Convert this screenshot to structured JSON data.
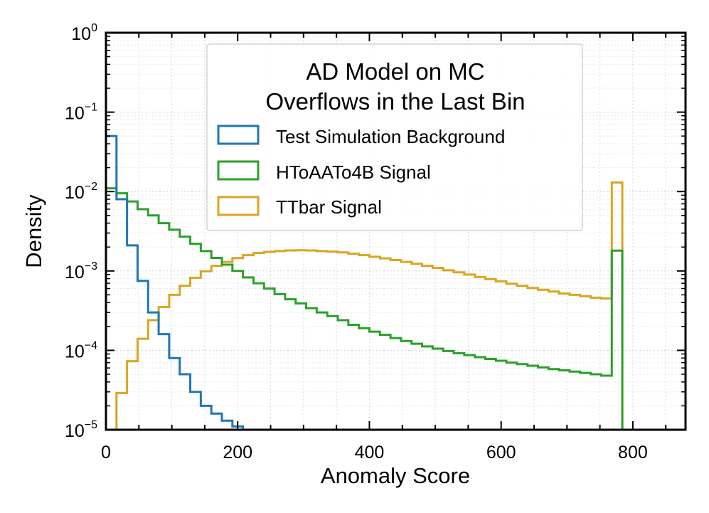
{
  "chart_data": {
    "type": "histogram",
    "title": "",
    "xlabel": "Anomaly Score",
    "ylabel": "Density",
    "xlim": [
      0,
      880
    ],
    "ylim": [
      1e-05,
      1
    ],
    "yscale": "log",
    "grid": true,
    "x_ticks": [
      {
        "value": 0,
        "label": "0"
      },
      {
        "value": 200,
        "label": "200"
      },
      {
        "value": 400,
        "label": "400"
      },
      {
        "value": 600,
        "label": "600"
      },
      {
        "value": 800,
        "label": "800"
      }
    ],
    "y_ticks": [
      {
        "value": 1,
        "base": "10",
        "exp": "0"
      },
      {
        "value": 0.1,
        "base": "10",
        "exp": "−1"
      },
      {
        "value": 0.01,
        "base": "10",
        "exp": "−2"
      },
      {
        "value": 0.001,
        "base": "10",
        "exp": "−3"
      },
      {
        "value": 0.0001,
        "base": "10",
        "exp": "−4"
      },
      {
        "value": 1e-05,
        "base": "10",
        "exp": "−5"
      }
    ],
    "legend": {
      "location": "top-center",
      "title_lines": [
        "AD Model on MC",
        "Overflows in the Last Bin"
      ]
    },
    "bin_edges": [
      0,
      16,
      32,
      48,
      64,
      80,
      96,
      112,
      128,
      144,
      160,
      176,
      192,
      208,
      224,
      240,
      256,
      272,
      288,
      304,
      320,
      336,
      352,
      368,
      384,
      400,
      416,
      432,
      448,
      464,
      480,
      496,
      512,
      528,
      544,
      560,
      576,
      592,
      608,
      624,
      640,
      656,
      672,
      688,
      704,
      720,
      736,
      752,
      768,
      784
    ],
    "series": [
      {
        "name": "Test Simulation Background",
        "color": "#1f77b4",
        "values": [
          0.05,
          0.008,
          0.0021,
          0.00075,
          0.0003,
          0.00016,
          8e-05,
          5e-05,
          3e-05,
          2e-05,
          1.6e-05,
          1.3e-05,
          1.1e-05,
          1e-05,
          1e-05,
          1e-05,
          1e-05,
          1e-05,
          1e-05,
          1e-05,
          1e-05,
          1e-05,
          1e-05,
          1e-05,
          1e-05,
          1e-05,
          1e-05,
          1e-05,
          1e-05,
          1e-05,
          1e-05,
          1e-05,
          1e-05,
          1e-05,
          1e-05,
          1e-05,
          1e-05,
          1e-05,
          1e-05,
          1e-05,
          1e-05,
          1e-05,
          1e-05,
          1e-05,
          1e-05,
          1e-05,
          1e-05,
          1e-05,
          1e-05
        ]
      },
      {
        "name": "HToAATo4B Signal",
        "color": "#2ca02c",
        "values": [
          0.011,
          0.0095,
          0.0075,
          0.006,
          0.005,
          0.004,
          0.0033,
          0.0027,
          0.0022,
          0.00178,
          0.00146,
          0.0012,
          0.001,
          0.00083,
          0.0007,
          0.0006,
          0.00051,
          0.00044,
          0.00039,
          0.00034,
          0.0003,
          0.00027,
          0.00024,
          0.00021,
          0.00019,
          0.000172,
          0.000157,
          0.000143,
          0.000131,
          0.000121,
          0.000112,
          0.000105,
          9.8e-05,
          9.2e-05,
          8.7e-05,
          8.2e-05,
          7.8e-05,
          7.4e-05,
          7e-05,
          6.7e-05,
          6.4e-05,
          6.1e-05,
          5.8e-05,
          5.6e-05,
          5.4e-05,
          5.2e-05,
          5e-05,
          4.8e-05,
          0.0018
        ]
      },
      {
        "name": "TTbar Signal",
        "color": "#daa520",
        "values": [
          1e-05,
          2.9e-05,
          7.3e-05,
          0.00014,
          0.00024,
          0.00035,
          0.0005,
          0.00065,
          0.00082,
          0.00099,
          0.00116,
          0.0013,
          0.00145,
          0.00158,
          0.00168,
          0.00174,
          0.00178,
          0.00181,
          0.00182,
          0.00181,
          0.00178,
          0.00175,
          0.00171,
          0.00165,
          0.00158,
          0.00151,
          0.00144,
          0.00137,
          0.0013,
          0.00123,
          0.00116,
          0.00109,
          0.00102,
          0.00096,
          0.0009,
          0.00084,
          0.00079,
          0.00074,
          0.00069,
          0.00065,
          0.00061,
          0.00058,
          0.00055,
          0.00052,
          0.0005,
          0.00048,
          0.00046,
          0.00045,
          0.013
        ]
      }
    ]
  }
}
